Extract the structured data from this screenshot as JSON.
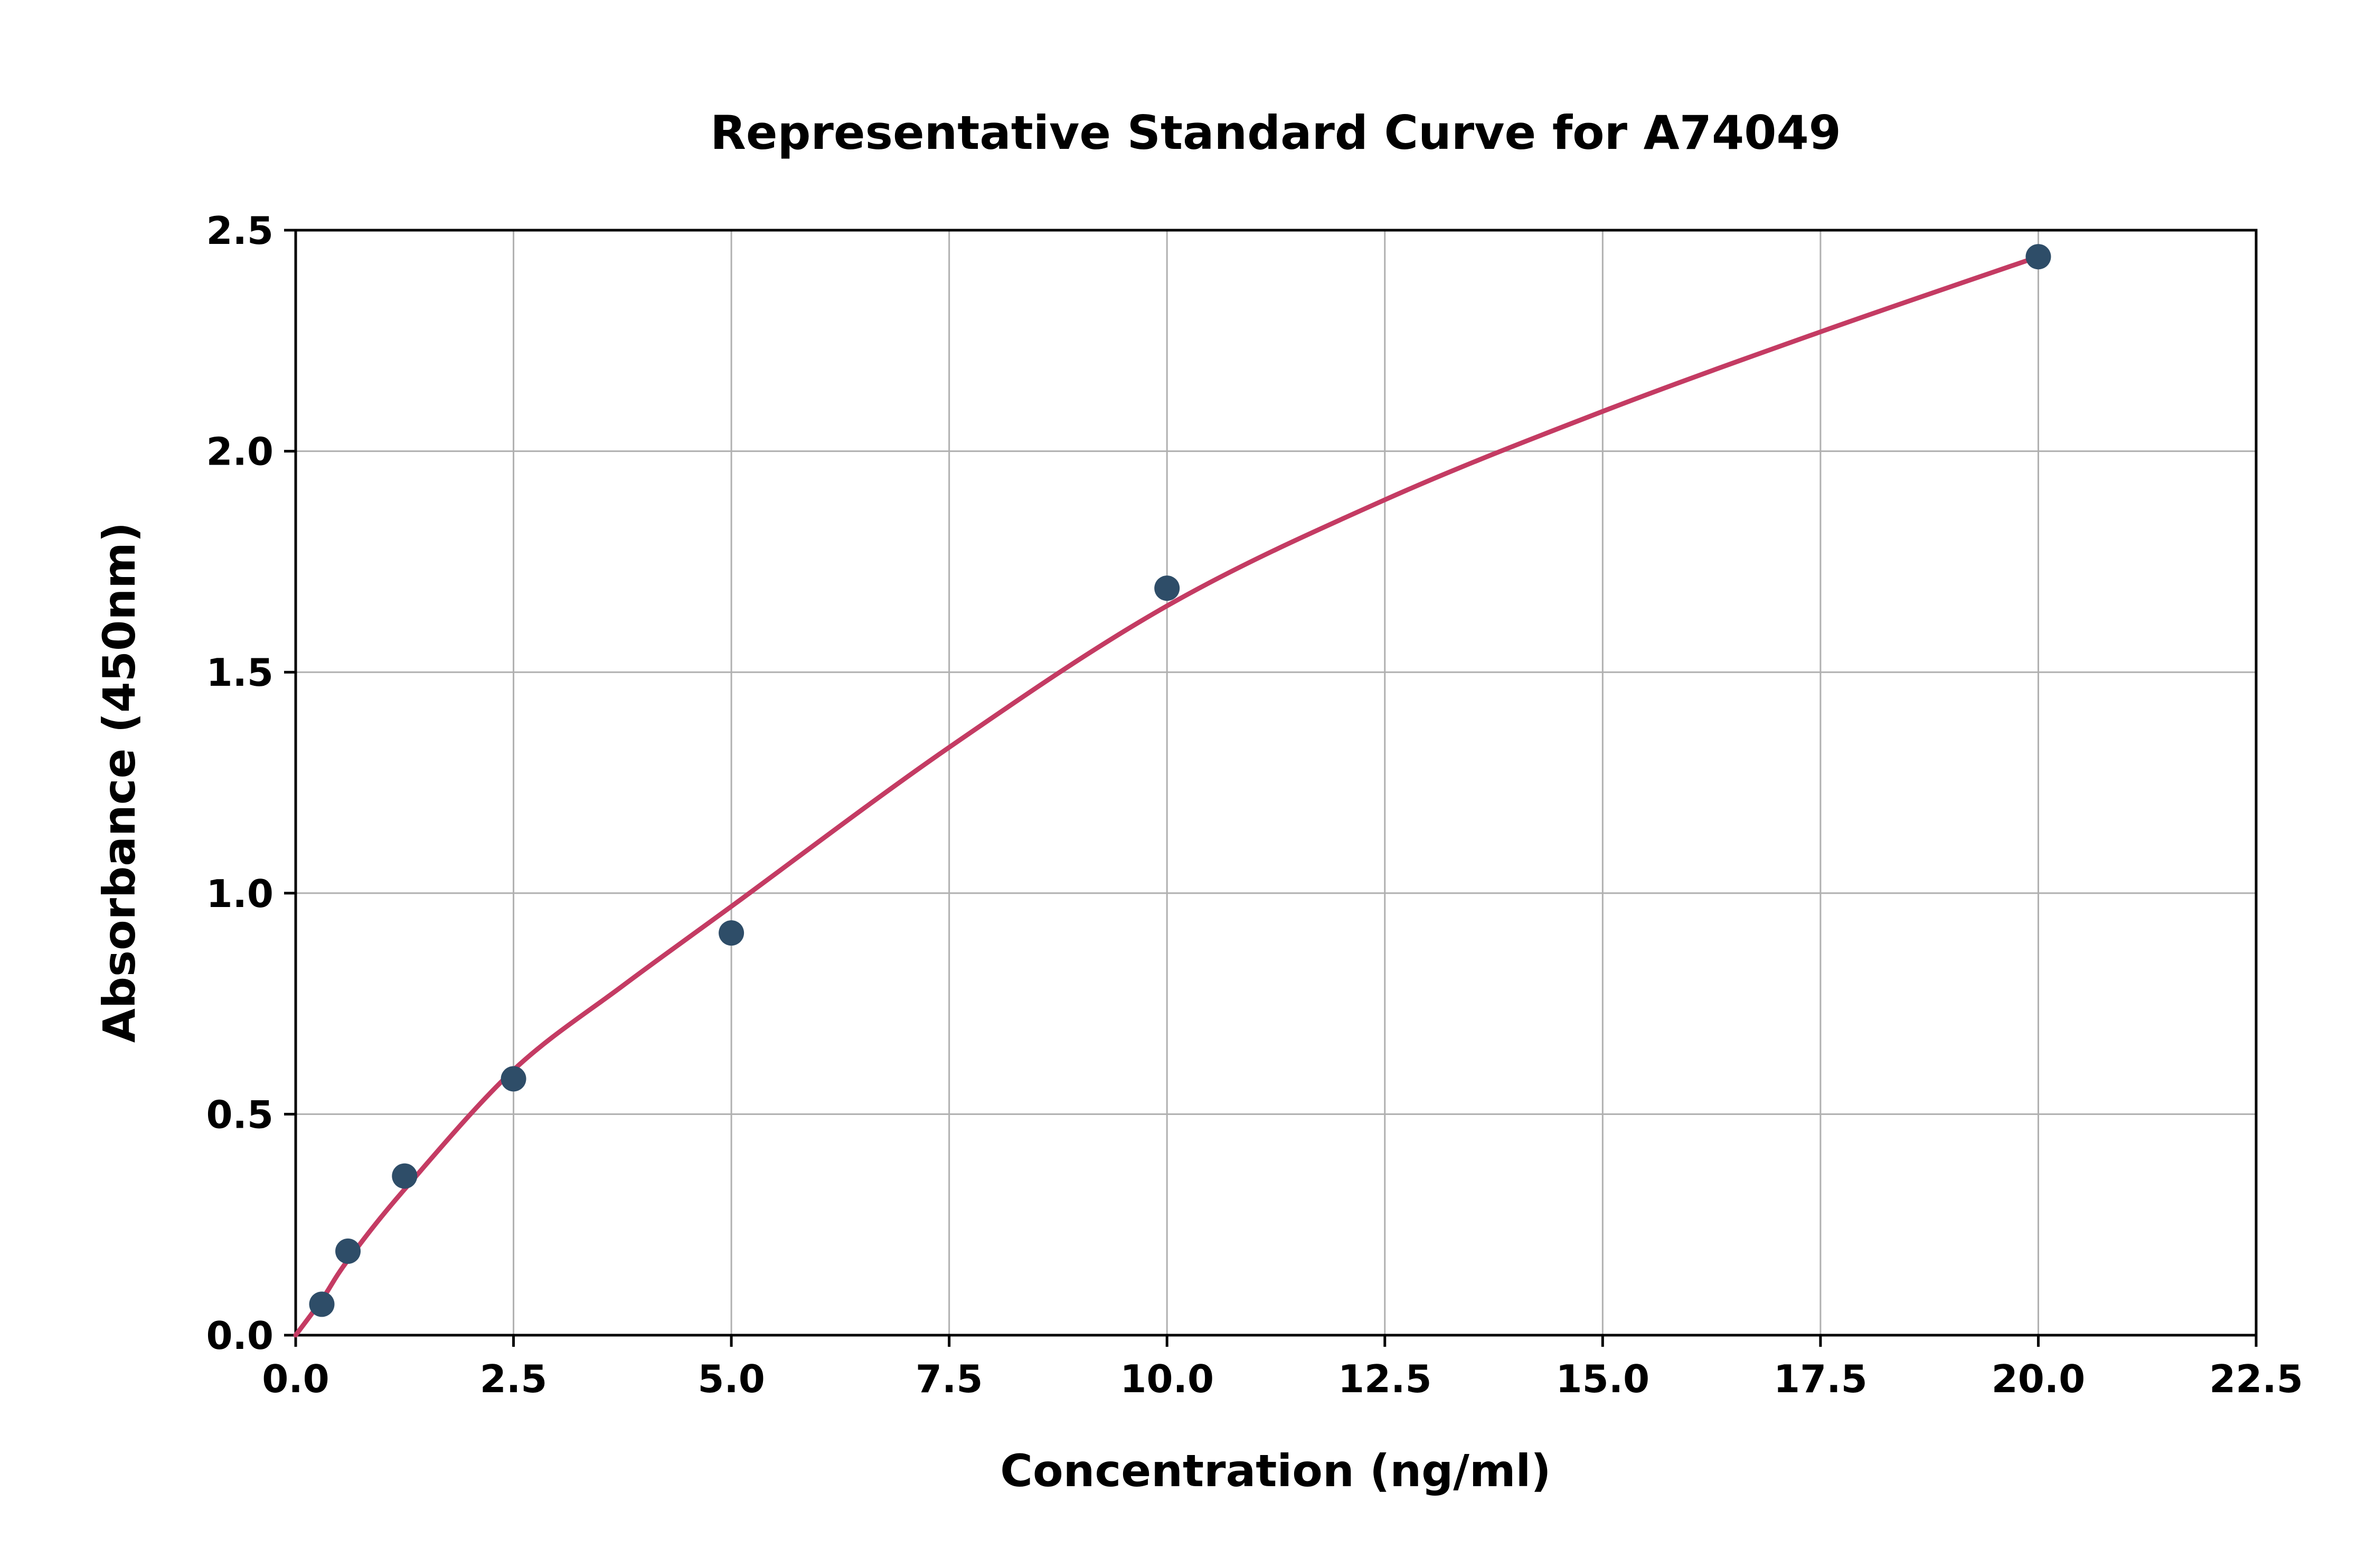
{
  "chart_data": {
    "type": "scatter",
    "title": "Representative Standard Curve for A74049",
    "xlabel": "Concentration (ng/ml)",
    "ylabel": "Absorbance (450nm)",
    "xlim": [
      0,
      22.5
    ],
    "ylim": [
      0,
      2.5
    ],
    "x_ticks": [
      0.0,
      2.5,
      5.0,
      7.5,
      10.0,
      12.5,
      15.0,
      17.5,
      20.0,
      22.5
    ],
    "y_ticks": [
      0.0,
      0.5,
      1.0,
      1.5,
      2.0,
      2.5
    ],
    "grid": true,
    "legend": "none",
    "points": {
      "x": [
        0.3,
        0.6,
        1.25,
        2.5,
        5.0,
        10.0,
        20.0
      ],
      "y": [
        0.07,
        0.19,
        0.36,
        0.58,
        0.91,
        1.69,
        2.44
      ]
    },
    "fit_curve": {
      "x": [
        0.0,
        0.3,
        0.6,
        1.25,
        2.5,
        3.75,
        5.0,
        7.5,
        10.0,
        12.5,
        15.0,
        17.5,
        20.0
      ],
      "y": [
        0.0,
        0.08,
        0.17,
        0.33,
        0.6,
        0.79,
        0.97,
        1.33,
        1.65,
        1.89,
        2.09,
        2.27,
        2.44
      ]
    },
    "colors": {
      "point": "#2e4d68",
      "curve": "#c43b63",
      "grid": "#b0b0b0",
      "axis": "#000000",
      "background": "#ffffff"
    }
  }
}
